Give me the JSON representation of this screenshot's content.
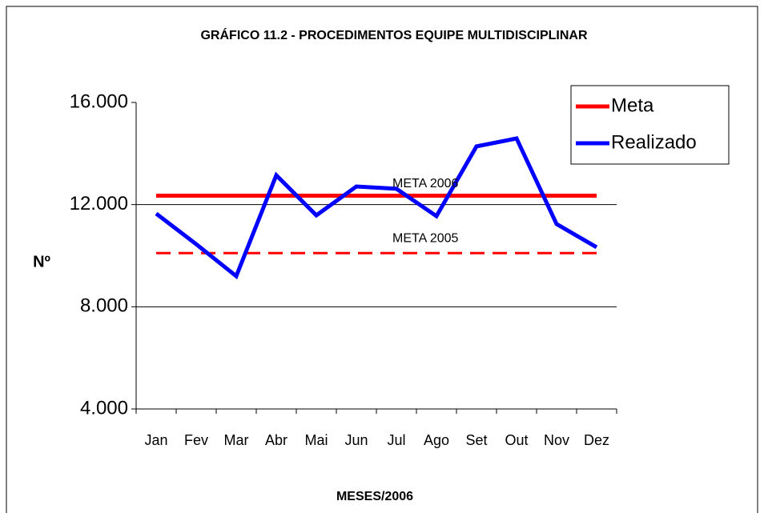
{
  "chart_data": {
    "type": "line",
    "title": "GRÁFICO 11.2 - PROCEDIMENTOS EQUIPE MULTIDISCIPLINAR",
    "x_label": "MESES/2006",
    "y_label": "Nº",
    "categories": [
      "Jan",
      "Fev",
      "Mar",
      "Abr",
      "Mai",
      "Jun",
      "Jul",
      "Ago",
      "Set",
      "Out",
      "Nov",
      "Dez"
    ],
    "series": [
      {
        "name": "Meta",
        "color": "#ff0000",
        "values": [
          12350,
          12350,
          12350,
          12350,
          12350,
          12350,
          12350,
          12350,
          12350,
          12350,
          12350,
          12350
        ]
      },
      {
        "name": "Realizado",
        "color": "#0000ff",
        "values": [
          11650,
          10450,
          9200,
          13150,
          11580,
          12710,
          12620,
          11550,
          14280,
          14590,
          11240,
          10330
        ]
      }
    ],
    "reference_lines": [
      {
        "value": 10100,
        "label": "META 2005",
        "color": "#ff0000",
        "dashed": true
      }
    ],
    "annotations": [
      "META 2006"
    ],
    "ylim": [
      4000,
      16000
    ],
    "yticks": [
      {
        "value": 4000,
        "label": "4.000"
      },
      {
        "value": 8000,
        "label": "8.000"
      },
      {
        "value": 12000,
        "label": "12.000"
      },
      {
        "value": 16000,
        "label": "16.000"
      }
    ],
    "grid": true,
    "legend": "upper right"
  }
}
